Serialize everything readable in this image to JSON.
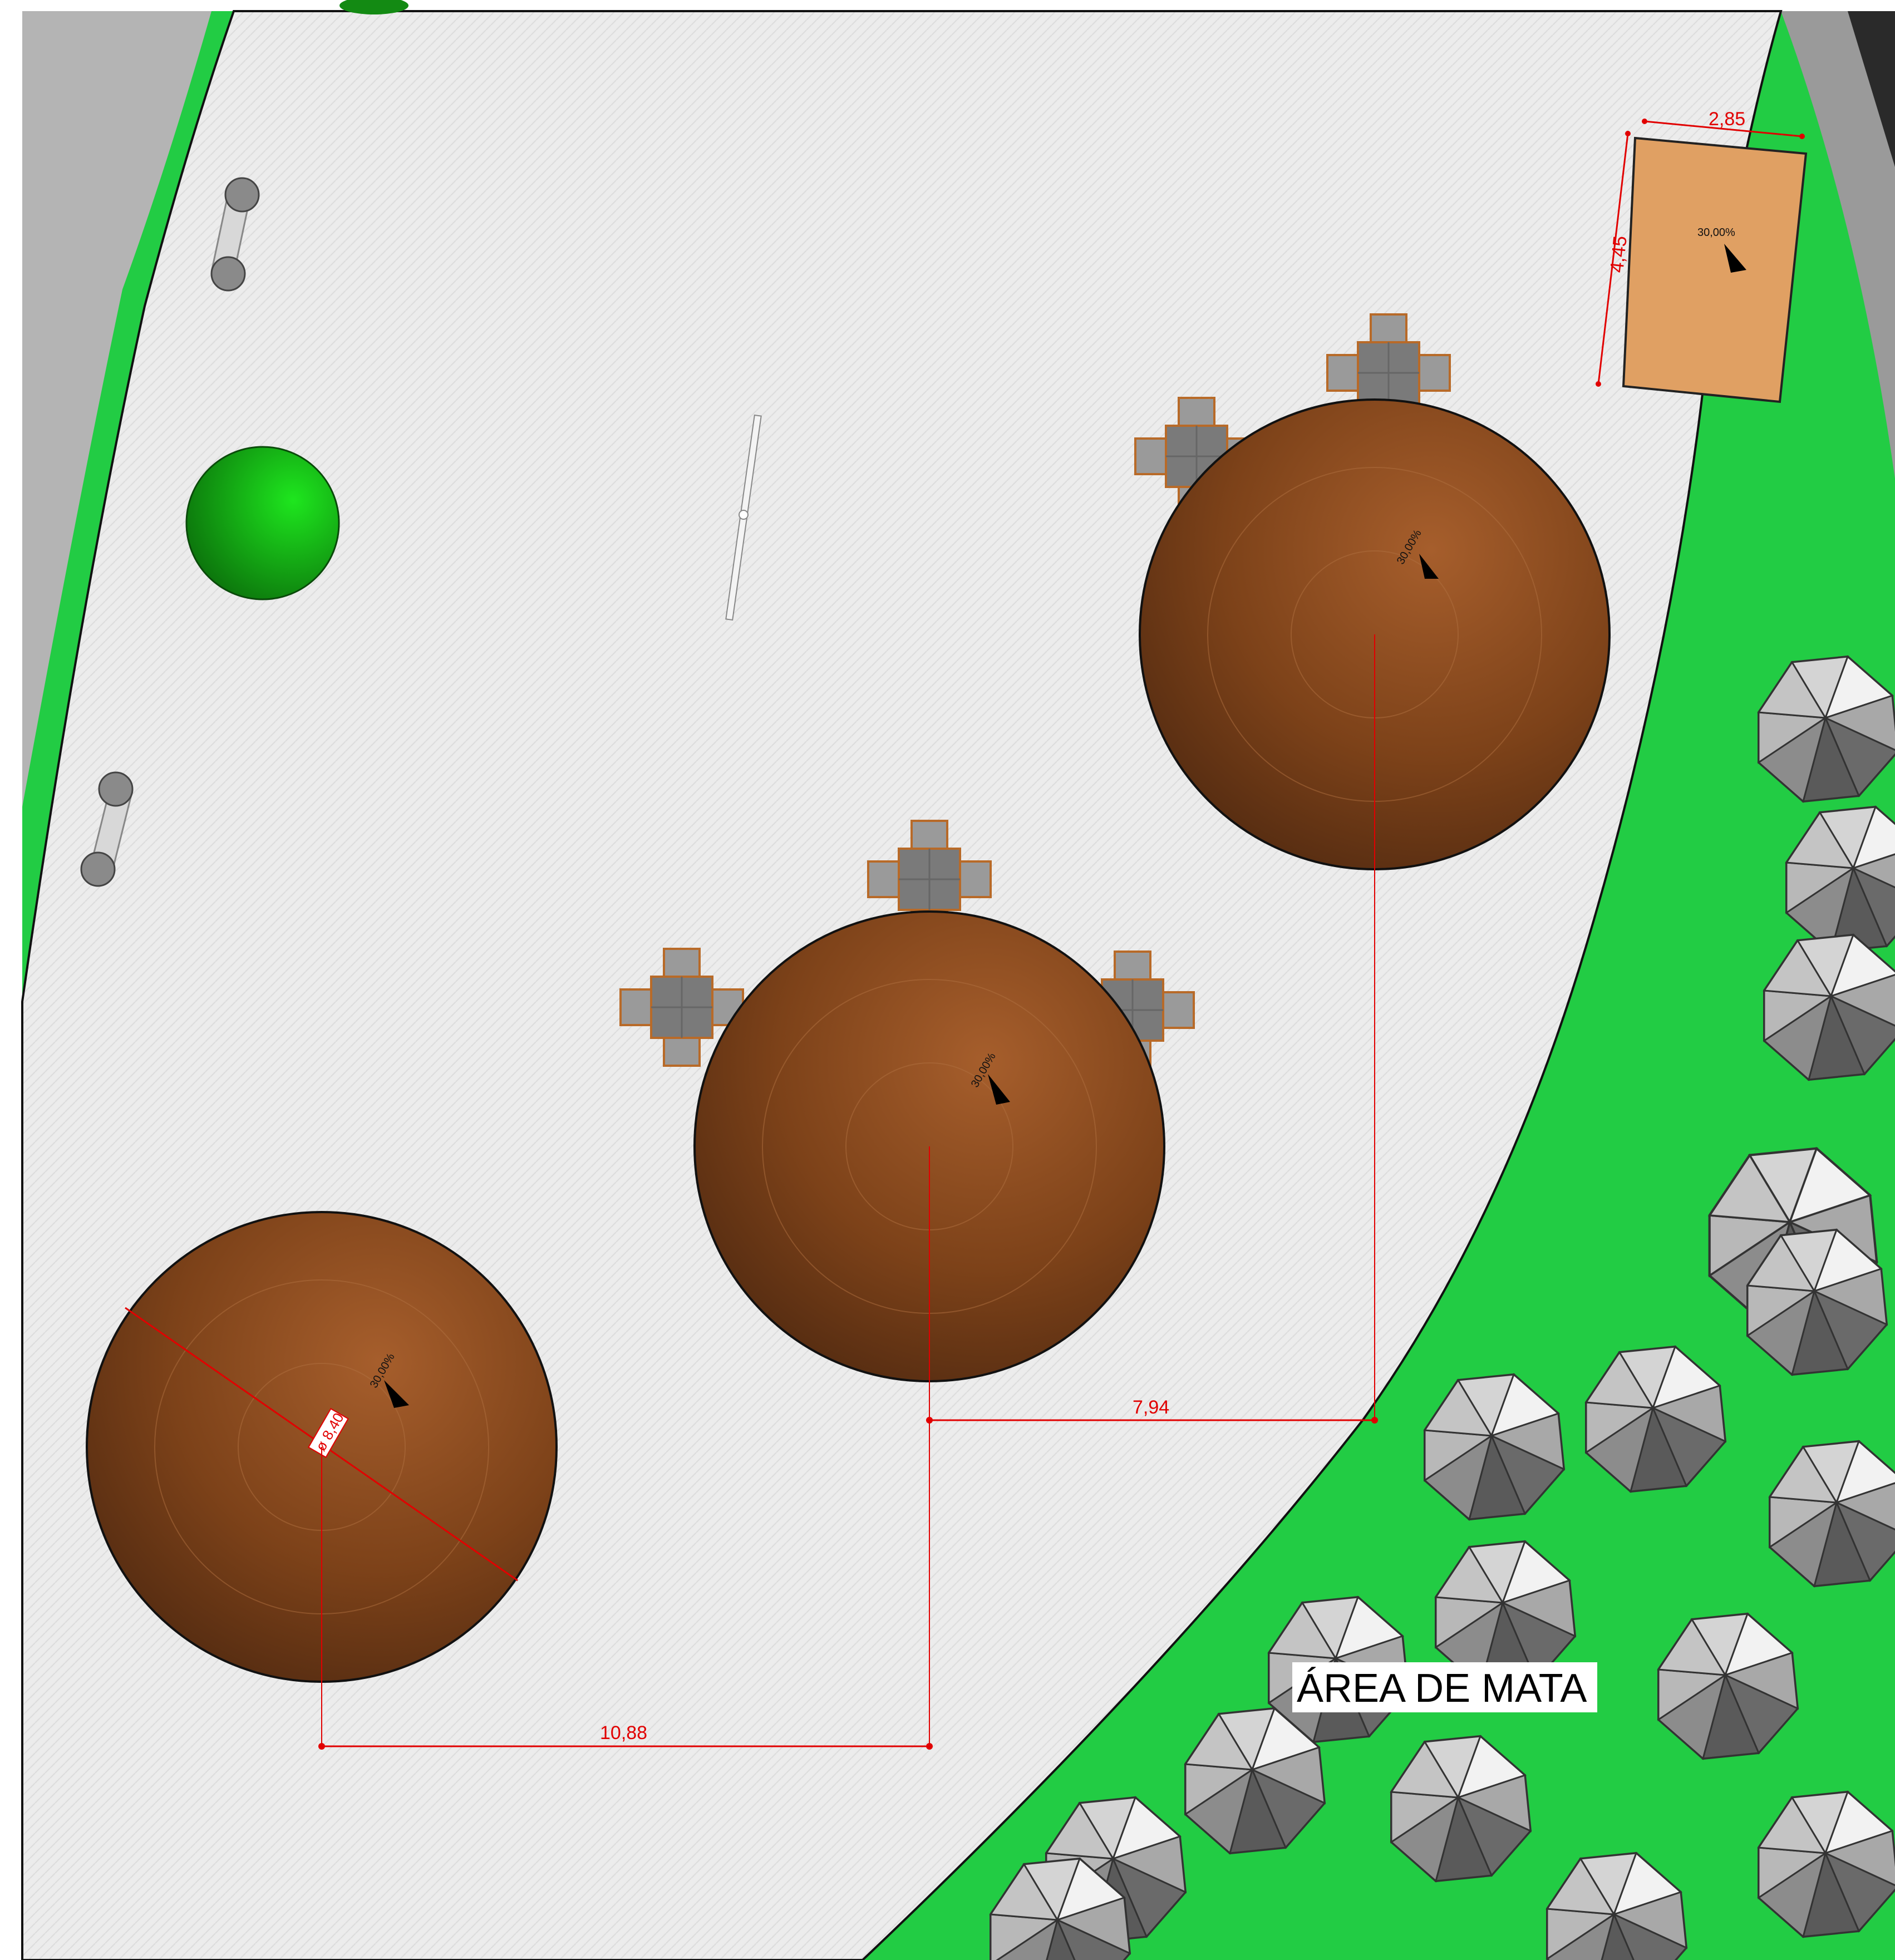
{
  "plan": {
    "area_label": "ÁREA DE MATA",
    "colors": {
      "paving": "#ececec",
      "lawn": "#22cc44",
      "street": "#b4b4b4",
      "dark_edge": "#2a2a2a",
      "roof": "#8a4a20",
      "small_roof": "#e0a063",
      "dimension": "#e10000",
      "tree_canopy": "#7e7e7e"
    },
    "kiosk_large": {
      "slope": "30,00%",
      "diameter": "ø 8,40"
    },
    "kiosk_middle": {
      "slope": "30,00%"
    },
    "kiosk_right": {
      "slope": "30,00%"
    },
    "small_roof": {
      "slope": "30,00%",
      "width": "2,85",
      "depth": "4,45"
    },
    "dimensions": {
      "left_to_middle": "10,88",
      "middle_to_right": "7,94"
    },
    "icons": {
      "bench": "bench-icon",
      "table_set": "table-chairs-icon",
      "slope_arrow": "slope-arrow-icon",
      "tree": "tree-icon",
      "shrub": "green-shrub-icon"
    }
  }
}
